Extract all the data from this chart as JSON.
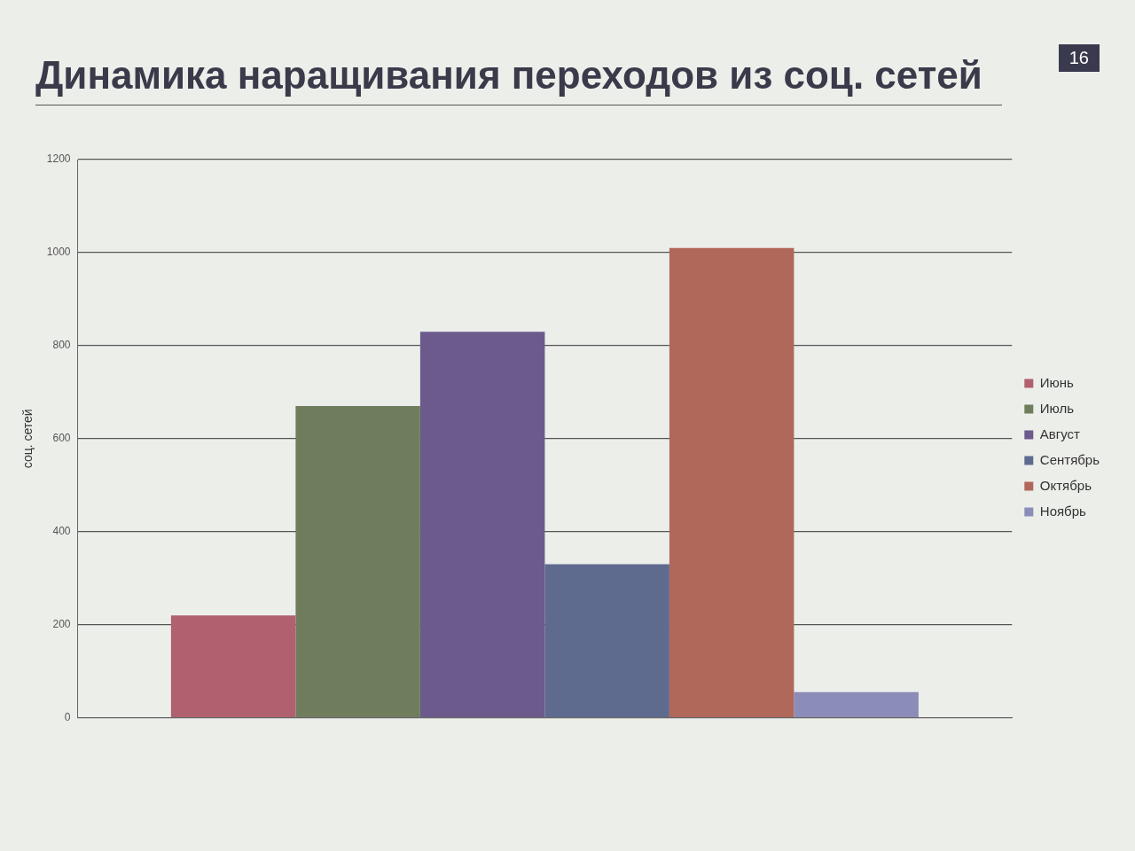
{
  "chart_data": {
    "type": "bar",
    "title": "Динамика наращивания переходов из соц. сетей",
    "ylabel": "соц. сетей",
    "categories": [
      null
    ],
    "series": [
      {
        "name": "Июнь",
        "color": "#b0606e",
        "values": [
          220
        ]
      },
      {
        "name": "Июль",
        "color": "#6f7d5c",
        "values": [
          670
        ]
      },
      {
        "name": "Август",
        "color": "#6c5a8c",
        "values": [
          830
        ]
      },
      {
        "name": "Сентябрь",
        "color": "#5f6b8e",
        "values": [
          330
        ]
      },
      {
        "name": "Октябрь",
        "color": "#b0685a",
        "values": [
          1010
        ]
      },
      {
        "name": "Ноябрь",
        "color": "#8c8cb8",
        "values": [
          55
        ]
      }
    ],
    "ylim": [
      0,
      1200
    ],
    "yticks": [
      0,
      200,
      400,
      600,
      800,
      1000,
      1200
    ],
    "grid": "y",
    "legend": "right",
    "annotations": [
      "16"
    ]
  }
}
